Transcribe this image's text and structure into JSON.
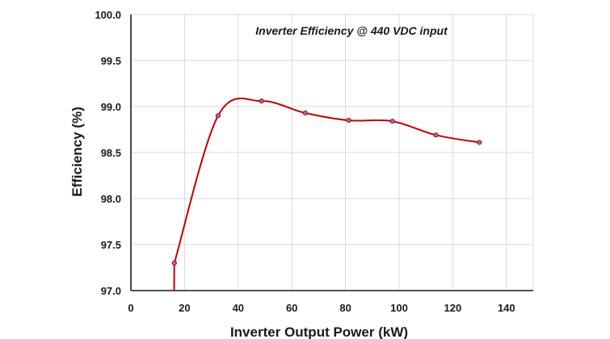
{
  "chart_data": {
    "type": "line",
    "title": "Inverter Efficiency @ 440 VDC input",
    "xlabel": "Inverter Output Power (kW)",
    "ylabel": "Efficiency (%)",
    "xlim": [
      0,
      150
    ],
    "ylim": [
      97.0,
      100.0
    ],
    "xticks": [
      0,
      20,
      40,
      60,
      80,
      100,
      120,
      140
    ],
    "yticks": [
      97.0,
      97.5,
      98.0,
      98.5,
      99.0,
      99.5,
      100.0
    ],
    "ytick_labels": [
      "97.0",
      "97.5",
      "98.0",
      "98.5",
      "99.0",
      "99.5",
      "100.0"
    ],
    "grid": "vertical and horizontal",
    "legend": "none",
    "smoothed": true,
    "line_color": "#c00000",
    "marker_color": "#8b74c9",
    "series": [
      {
        "x": [
          16.2,
          32.5,
          48.7,
          65.0,
          81.2,
          97.5,
          113.7,
          129.9
        ],
        "y": [
          97.3,
          98.9,
          99.06,
          98.93,
          98.85,
          98.84,
          98.69,
          98.61
        ]
      }
    ]
  }
}
